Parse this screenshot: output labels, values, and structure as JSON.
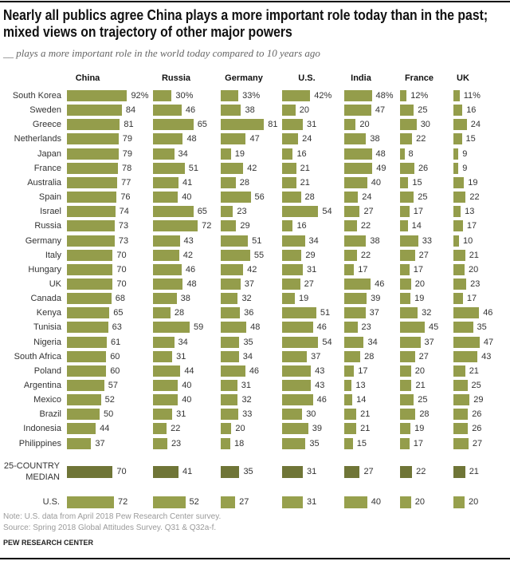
{
  "chart_data": {
    "type": "bar",
    "orientation": "horizontal",
    "title_lines": [
      "Nearly all publics agree China plays a more important role today than in the past;",
      "mixed views on trajectory of other major powers"
    ],
    "subtitle": "__ plays a more important role in the world today compared to 10 years ago",
    "xlabel": "",
    "ylabel": "",
    "xlim": [
      0,
      100
    ],
    "grid": false,
    "legend": "none",
    "unit_suffix": "%",
    "categories": [
      "South Korea",
      "Sweden",
      "Greece",
      "Netherlands",
      "Japan",
      "France",
      "Australia",
      "Spain",
      "Israel",
      "Russia",
      "Germany",
      "Italy",
      "Hungary",
      "UK",
      "Canada",
      "Kenya",
      "Tunisia",
      "Nigeria",
      "South Africa",
      "Poland",
      "Argentina",
      "Mexico",
      "Brazil",
      "Indonesia",
      "Philippines"
    ],
    "series": [
      {
        "name": "China",
        "values": [
          92,
          84,
          81,
          79,
          79,
          78,
          77,
          76,
          74,
          73,
          73,
          70,
          70,
          70,
          68,
          65,
          63,
          61,
          60,
          60,
          57,
          52,
          50,
          44,
          37
        ]
      },
      {
        "name": "Russia",
        "values": [
          30,
          46,
          65,
          48,
          34,
          51,
          41,
          40,
          65,
          72,
          43,
          42,
          46,
          48,
          38,
          28,
          59,
          34,
          31,
          44,
          40,
          40,
          31,
          22,
          23
        ]
      },
      {
        "name": "Germany",
        "values": [
          33,
          38,
          81,
          47,
          19,
          42,
          28,
          56,
          23,
          29,
          51,
          55,
          42,
          37,
          32,
          36,
          48,
          35,
          34,
          46,
          31,
          32,
          33,
          20,
          18
        ]
      },
      {
        "name": "U.S.",
        "values": [
          42,
          20,
          31,
          24,
          16,
          21,
          21,
          28,
          54,
          16,
          34,
          29,
          31,
          27,
          19,
          51,
          46,
          54,
          37,
          43,
          43,
          46,
          30,
          39,
          35
        ]
      },
      {
        "name": "India",
        "values": [
          48,
          47,
          20,
          38,
          48,
          49,
          40,
          24,
          27,
          22,
          38,
          22,
          17,
          46,
          39,
          37,
          23,
          34,
          28,
          17,
          13,
          14,
          21,
          21,
          15
        ]
      },
      {
        "name": "France",
        "values": [
          12,
          25,
          30,
          22,
          8,
          26,
          15,
          25,
          17,
          14,
          33,
          27,
          17,
          20,
          19,
          32,
          45,
          37,
          27,
          20,
          21,
          25,
          28,
          19,
          17
        ]
      },
      {
        "name": "UK",
        "values": [
          11,
          16,
          24,
          15,
          9,
          9,
          19,
          22,
          13,
          17,
          10,
          21,
          20,
          23,
          17,
          46,
          35,
          47,
          43,
          21,
          25,
          29,
          26,
          26,
          27
        ]
      }
    ],
    "summary_rows": [
      {
        "label_lines": [
          "25-COUNTRY",
          "MEDIAN"
        ],
        "values": [
          70,
          41,
          35,
          31,
          27,
          22,
          21
        ]
      },
      {
        "label_lines": [
          "U.S."
        ],
        "values": [
          72,
          52,
          27,
          31,
          40,
          20,
          20
        ]
      }
    ]
  },
  "colors": {
    "bar": "#949d4b",
    "median_bar": "#6f7537",
    "us_bar": "#97a04d"
  },
  "footer": {
    "note": "Note: U.S. data from April 2018 Pew Research Center survey.",
    "source": "Source: Spring 2018 Global Attitudes Survey. Q31 & Q32a-f.",
    "brand": "PEW RESEARCH CENTER"
  }
}
